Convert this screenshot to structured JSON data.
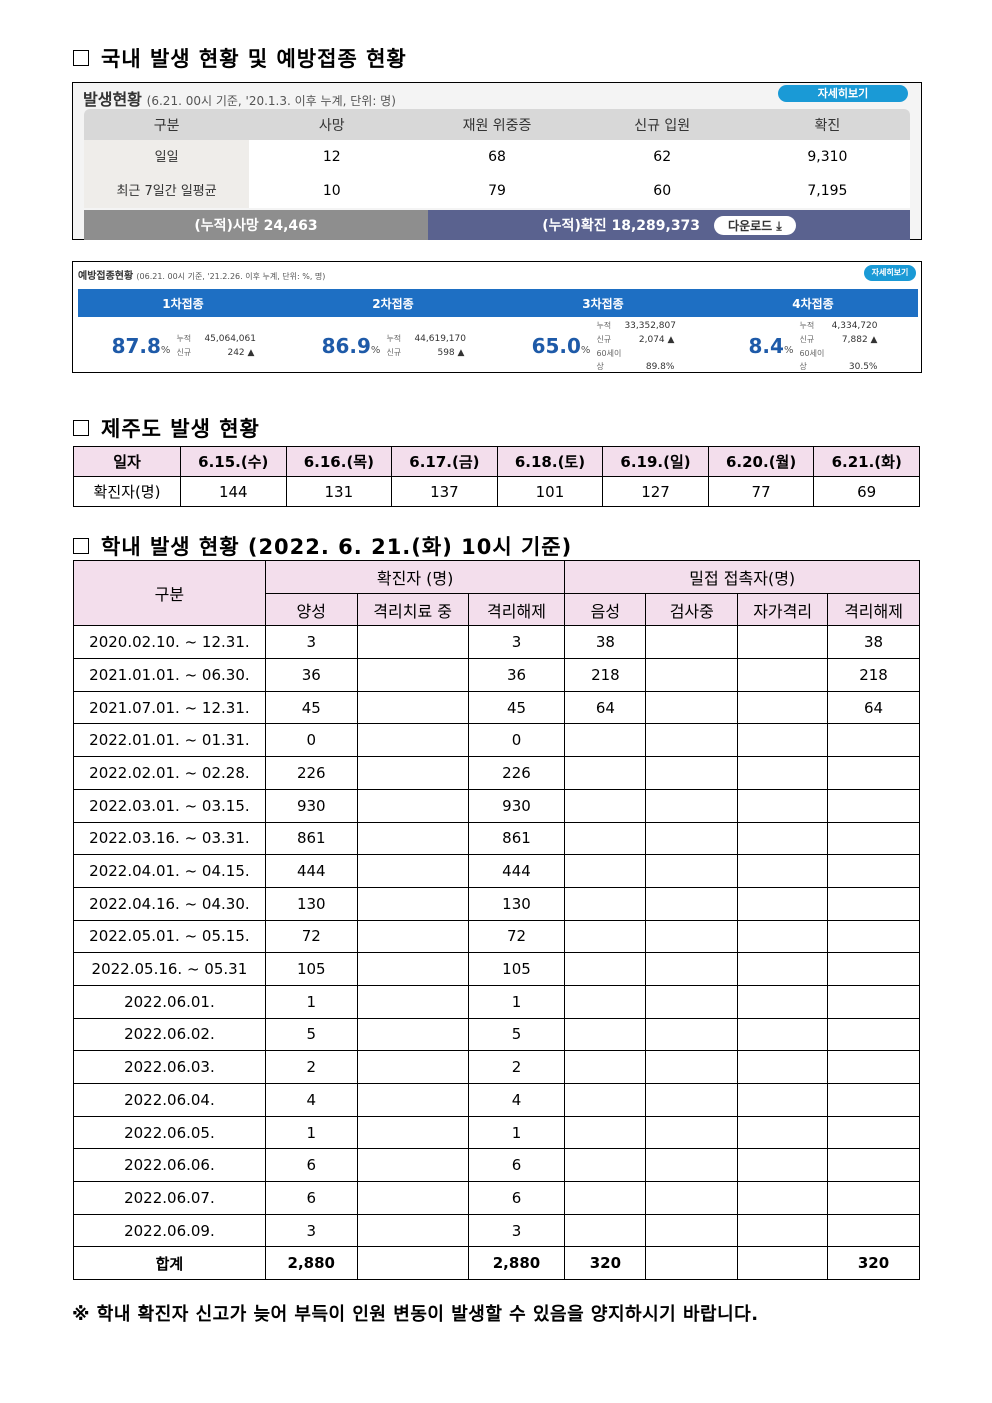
{
  "sections": {
    "domestic": "국내 발생 현황 및 예방접종 현황",
    "jeju": "제주도 발생 현황",
    "school": "학내 발생 현황 (2022. 6. 21.(화) 10시 기준)"
  },
  "outbreak": {
    "title": "발생현황",
    "subtitle": "(6.21. 00시 기준, '20.1.3. 이후 누계, 단위: 명)",
    "more": "자세히보기",
    "headers": [
      "구분",
      "사망",
      "재원 위중증",
      "신규 입원",
      "확진"
    ],
    "rows": [
      [
        "일일",
        "12",
        "68",
        "62",
        "9,310"
      ],
      [
        "최근 7일간 일평균",
        "10",
        "79",
        "60",
        "7,195"
      ]
    ],
    "cum_death": "(누적)사망  24,463",
    "cum_confirmed": "(누적)확진  18,289,373",
    "download": "다운로드 ⤓"
  },
  "vaccine": {
    "title": "예방접종현황",
    "subtitle": "(06.21. 00시 기준, '21.2.26. 이후 누계, 단위: %, 명)",
    "more": "자세히보기",
    "doses": [
      {
        "label": "1차접종",
        "pct": "87.8",
        "cum": "45,064,061",
        "new": "242 ▲"
      },
      {
        "label": "2차접종",
        "pct": "86.9",
        "cum": "44,619,170",
        "new": "598 ▲"
      },
      {
        "label": "3차접종",
        "pct": "65.0",
        "cum": "33,352,807",
        "new": "2,074 ▲",
        "over60": "89.8%"
      },
      {
        "label": "4차접종",
        "pct": "8.4",
        "cum": "4,334,720",
        "new": "7,882 ▲",
        "over60": "30.5%"
      }
    ],
    "k_cum": "누적",
    "k_new": "신규",
    "k_60": "60세이상",
    "pct_unit": "%"
  },
  "jeju": {
    "header": [
      "일자",
      "6.15.(수)",
      "6.16.(목)",
      "6.17.(금)",
      "6.18.(토)",
      "6.19.(일)",
      "6.20.(월)",
      "6.21.(화)"
    ],
    "row": [
      "확진자(명)",
      "144",
      "131",
      "137",
      "101",
      "127",
      "77",
      "69"
    ]
  },
  "school": {
    "h_group": "구분",
    "h_confirmed": "확진자 (명)",
    "h_contact": "밀접 접촉자(명)",
    "sub": [
      "양성",
      "격리치료 중",
      "격리해제",
      "음성",
      "검사중",
      "자가격리",
      "격리해제"
    ],
    "rows": [
      [
        "2020.02.10.  ~  12.31.",
        "3",
        "",
        "3",
        "38",
        "",
        "",
        "38"
      ],
      [
        "2021.01.01.  ~  06.30.",
        "36",
        "",
        "36",
        "218",
        "",
        "",
        "218"
      ],
      [
        "2021.07.01.  ~  12.31.",
        "45",
        "",
        "45",
        "64",
        "",
        "",
        "64"
      ],
      [
        "2022.01.01.  ~  01.31.",
        "0",
        "",
        "0",
        "",
        "",
        "",
        ""
      ],
      [
        "2022.02.01.  ~  02.28.",
        "226",
        "",
        "226",
        "",
        "",
        "",
        ""
      ],
      [
        "2022.03.01.  ~  03.15.",
        "930",
        "",
        "930",
        "",
        "",
        "",
        ""
      ],
      [
        "2022.03.16.  ~  03.31.",
        "861",
        "",
        "861",
        "",
        "",
        "",
        ""
      ],
      [
        "2022.04.01.  ~  04.15.",
        "444",
        "",
        "444",
        "",
        "",
        "",
        ""
      ],
      [
        "2022.04.16.  ~  04.30.",
        "130",
        "",
        "130",
        "",
        "",
        "",
        ""
      ],
      [
        "2022.05.01.  ~  05.15.",
        "72",
        "",
        "72",
        "",
        "",
        "",
        ""
      ],
      [
        "2022.05.16.  ~  05.31",
        "105",
        "",
        "105",
        "",
        "",
        "",
        ""
      ],
      [
        "2022.06.01.",
        "1",
        "",
        "1",
        "",
        "",
        "",
        ""
      ],
      [
        "2022.06.02.",
        "5",
        "",
        "5",
        "",
        "",
        "",
        ""
      ],
      [
        "2022.06.03.",
        "2",
        "",
        "2",
        "",
        "",
        "",
        ""
      ],
      [
        "2022.06.04.",
        "4",
        "",
        "4",
        "",
        "",
        "",
        ""
      ],
      [
        "2022.06.05.",
        "1",
        "",
        "1",
        "",
        "",
        "",
        ""
      ],
      [
        "2022.06.06.",
        "6",
        "",
        "6",
        "",
        "",
        "",
        ""
      ],
      [
        "2022.06.07.",
        "6",
        "",
        "6",
        "",
        "",
        "",
        ""
      ],
      [
        "2022.06.09.",
        "3",
        "",
        "3",
        "",
        "",
        "",
        ""
      ]
    ],
    "total": [
      "합계",
      "2,880",
      "",
      "2,880",
      "320",
      "",
      "",
      "320"
    ]
  },
  "note": "※ 학내 확진자 신고가 늦어 부득이 인원 변동이 발생할 수 있음을 양지하시기 바랍니다."
}
